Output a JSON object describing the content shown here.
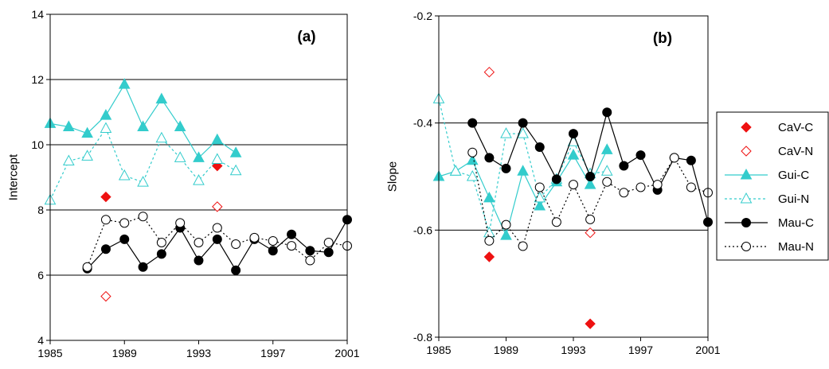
{
  "colors": {
    "cav": "#ee1111",
    "gui": "#33cccc",
    "mau": "#000000"
  },
  "chart_data": [
    {
      "type": "scatter",
      "panel_label": "(a)",
      "xlabel": "",
      "ylabel": "Intercept",
      "xlim": [
        1985,
        2001
      ],
      "ylim": [
        4,
        14
      ],
      "xticks": [
        1985,
        1989,
        1993,
        1997,
        2001
      ],
      "yticks": [
        4,
        6,
        8,
        10,
        12,
        14
      ],
      "gridlines_y": [
        6,
        8,
        10,
        12
      ],
      "series": [
        {
          "name": "CaV-C",
          "key": "cavc",
          "points": [
            [
              1988,
              8.4
            ],
            [
              1994,
              9.35
            ]
          ]
        },
        {
          "name": "CaV-N",
          "key": "cavn",
          "points": [
            [
              1988,
              5.35
            ],
            [
              1994,
              8.1
            ]
          ]
        },
        {
          "name": "Gui-C",
          "key": "guic",
          "points": [
            [
              1985,
              10.65
            ],
            [
              1986,
              10.55
            ],
            [
              1987,
              10.35
            ],
            [
              1988,
              10.9
            ],
            [
              1989,
              11.85
            ],
            [
              1990,
              10.55
            ],
            [
              1991,
              11.4
            ],
            [
              1992,
              10.55
            ],
            [
              1993,
              9.6
            ],
            [
              1994,
              10.15
            ],
            [
              1995,
              9.75
            ]
          ]
        },
        {
          "name": "Gui-N",
          "key": "guin",
          "points": [
            [
              1985,
              8.3
            ],
            [
              1986,
              9.5
            ],
            [
              1987,
              9.65
            ],
            [
              1988,
              10.5
            ],
            [
              1989,
              9.05
            ],
            [
              1990,
              8.85
            ],
            [
              1991,
              10.2
            ],
            [
              1992,
              9.6
            ],
            [
              1993,
              8.9
            ],
            [
              1994,
              9.55
            ],
            [
              1995,
              9.2
            ]
          ]
        },
        {
          "name": "Mau-C",
          "key": "mauc",
          "points": [
            [
              1987,
              6.2
            ],
            [
              1988,
              6.8
            ],
            [
              1989,
              7.1
            ],
            [
              1990,
              6.25
            ],
            [
              1991,
              6.65
            ],
            [
              1992,
              7.45
            ],
            [
              1993,
              6.45
            ],
            [
              1994,
              7.1
            ],
            [
              1995,
              6.15
            ],
            [
              1996,
              7.1
            ],
            [
              1997,
              6.75
            ],
            [
              1998,
              7.25
            ],
            [
              1999,
              6.75
            ],
            [
              2000,
              6.7
            ],
            [
              2001,
              7.7
            ]
          ]
        },
        {
          "name": "Mau-N",
          "key": "maun",
          "points": [
            [
              1987,
              6.25
            ],
            [
              1988,
              7.7
            ],
            [
              1989,
              7.6
            ],
            [
              1990,
              7.8
            ],
            [
              1991,
              7.0
            ],
            [
              1992,
              7.6
            ],
            [
              1993,
              7.0
            ],
            [
              1994,
              7.45
            ],
            [
              1995,
              6.95
            ],
            [
              1996,
              7.15
            ],
            [
              1997,
              7.05
            ],
            [
              1998,
              6.9
            ],
            [
              1999,
              6.45
            ],
            [
              2000,
              7.0
            ],
            [
              2001,
              6.9
            ]
          ]
        }
      ]
    },
    {
      "type": "scatter",
      "panel_label": "(b)",
      "xlabel": "",
      "ylabel": "Slope",
      "xlim": [
        1985,
        2001
      ],
      "ylim": [
        -0.8,
        -0.2
      ],
      "xticks": [
        1985,
        1989,
        1993,
        1997,
        2001
      ],
      "yticks": [
        -0.8,
        -0.6,
        -0.4,
        -0.2
      ],
      "gridlines_y": [
        -0.6,
        -0.4
      ],
      "series": [
        {
          "name": "CaV-C",
          "key": "cavc",
          "points": [
            [
              1988,
              -0.65
            ],
            [
              1994,
              -0.775
            ]
          ]
        },
        {
          "name": "CaV-N",
          "key": "cavn",
          "points": [
            [
              1988,
              -0.305
            ],
            [
              1994,
              -0.605
            ]
          ]
        },
        {
          "name": "Gui-C",
          "key": "guic",
          "points": [
            [
              1985,
              -0.5
            ],
            [
              1986,
              -0.49
            ],
            [
              1987,
              -0.47
            ],
            [
              1988,
              -0.54
            ],
            [
              1989,
              -0.61
            ],
            [
              1990,
              -0.49
            ],
            [
              1991,
              -0.555
            ],
            [
              1992,
              -0.51
            ],
            [
              1993,
              -0.46
            ],
            [
              1994,
              -0.515
            ],
            [
              1995,
              -0.45
            ]
          ]
        },
        {
          "name": "Gui-N",
          "key": "guin",
          "points": [
            [
              1985,
              -0.355
            ],
            [
              1986,
              -0.49
            ],
            [
              1987,
              -0.5
            ],
            [
              1988,
              -0.605
            ],
            [
              1989,
              -0.42
            ],
            [
              1990,
              -0.42
            ],
            [
              1991,
              -0.54
            ],
            [
              1992,
              -0.505
            ],
            [
              1993,
              -0.435
            ],
            [
              1994,
              -0.495
            ],
            [
              1995,
              -0.49
            ]
          ]
        },
        {
          "name": "Mau-C",
          "key": "mauc",
          "points": [
            [
              1987,
              -0.4
            ],
            [
              1988,
              -0.465
            ],
            [
              1989,
              -0.485
            ],
            [
              1990,
              -0.4
            ],
            [
              1991,
              -0.445
            ],
            [
              1992,
              -0.505
            ],
            [
              1993,
              -0.42
            ],
            [
              1994,
              -0.5
            ],
            [
              1995,
              -0.38
            ],
            [
              1996,
              -0.48
            ],
            [
              1997,
              -0.46
            ],
            [
              1998,
              -0.525
            ],
            [
              1999,
              -0.465
            ],
            [
              2000,
              -0.47
            ],
            [
              2001,
              -0.585
            ]
          ]
        },
        {
          "name": "Mau-N",
          "key": "maun",
          "points": [
            [
              1987,
              -0.455
            ],
            [
              1988,
              -0.62
            ],
            [
              1989,
              -0.59
            ],
            [
              1990,
              -0.63
            ],
            [
              1991,
              -0.52
            ],
            [
              1992,
              -0.585
            ],
            [
              1993,
              -0.515
            ],
            [
              1994,
              -0.58
            ],
            [
              1995,
              -0.51
            ],
            [
              1996,
              -0.53
            ],
            [
              1997,
              -0.52
            ],
            [
              1998,
              -0.515
            ],
            [
              1999,
              -0.465
            ],
            [
              2000,
              -0.52
            ],
            [
              2001,
              -0.53
            ]
          ]
        }
      ]
    }
  ],
  "legend": {
    "placement": "right",
    "items": [
      {
        "key": "cavc",
        "label": "CaV-C"
      },
      {
        "key": "cavn",
        "label": "CaV-N"
      },
      {
        "key": "guic",
        "label": "Gui-C"
      },
      {
        "key": "guin",
        "label": "Gui-N"
      },
      {
        "key": "mauc",
        "label": "Mau-C"
      },
      {
        "key": "maun",
        "label": "Mau-N"
      }
    ]
  }
}
